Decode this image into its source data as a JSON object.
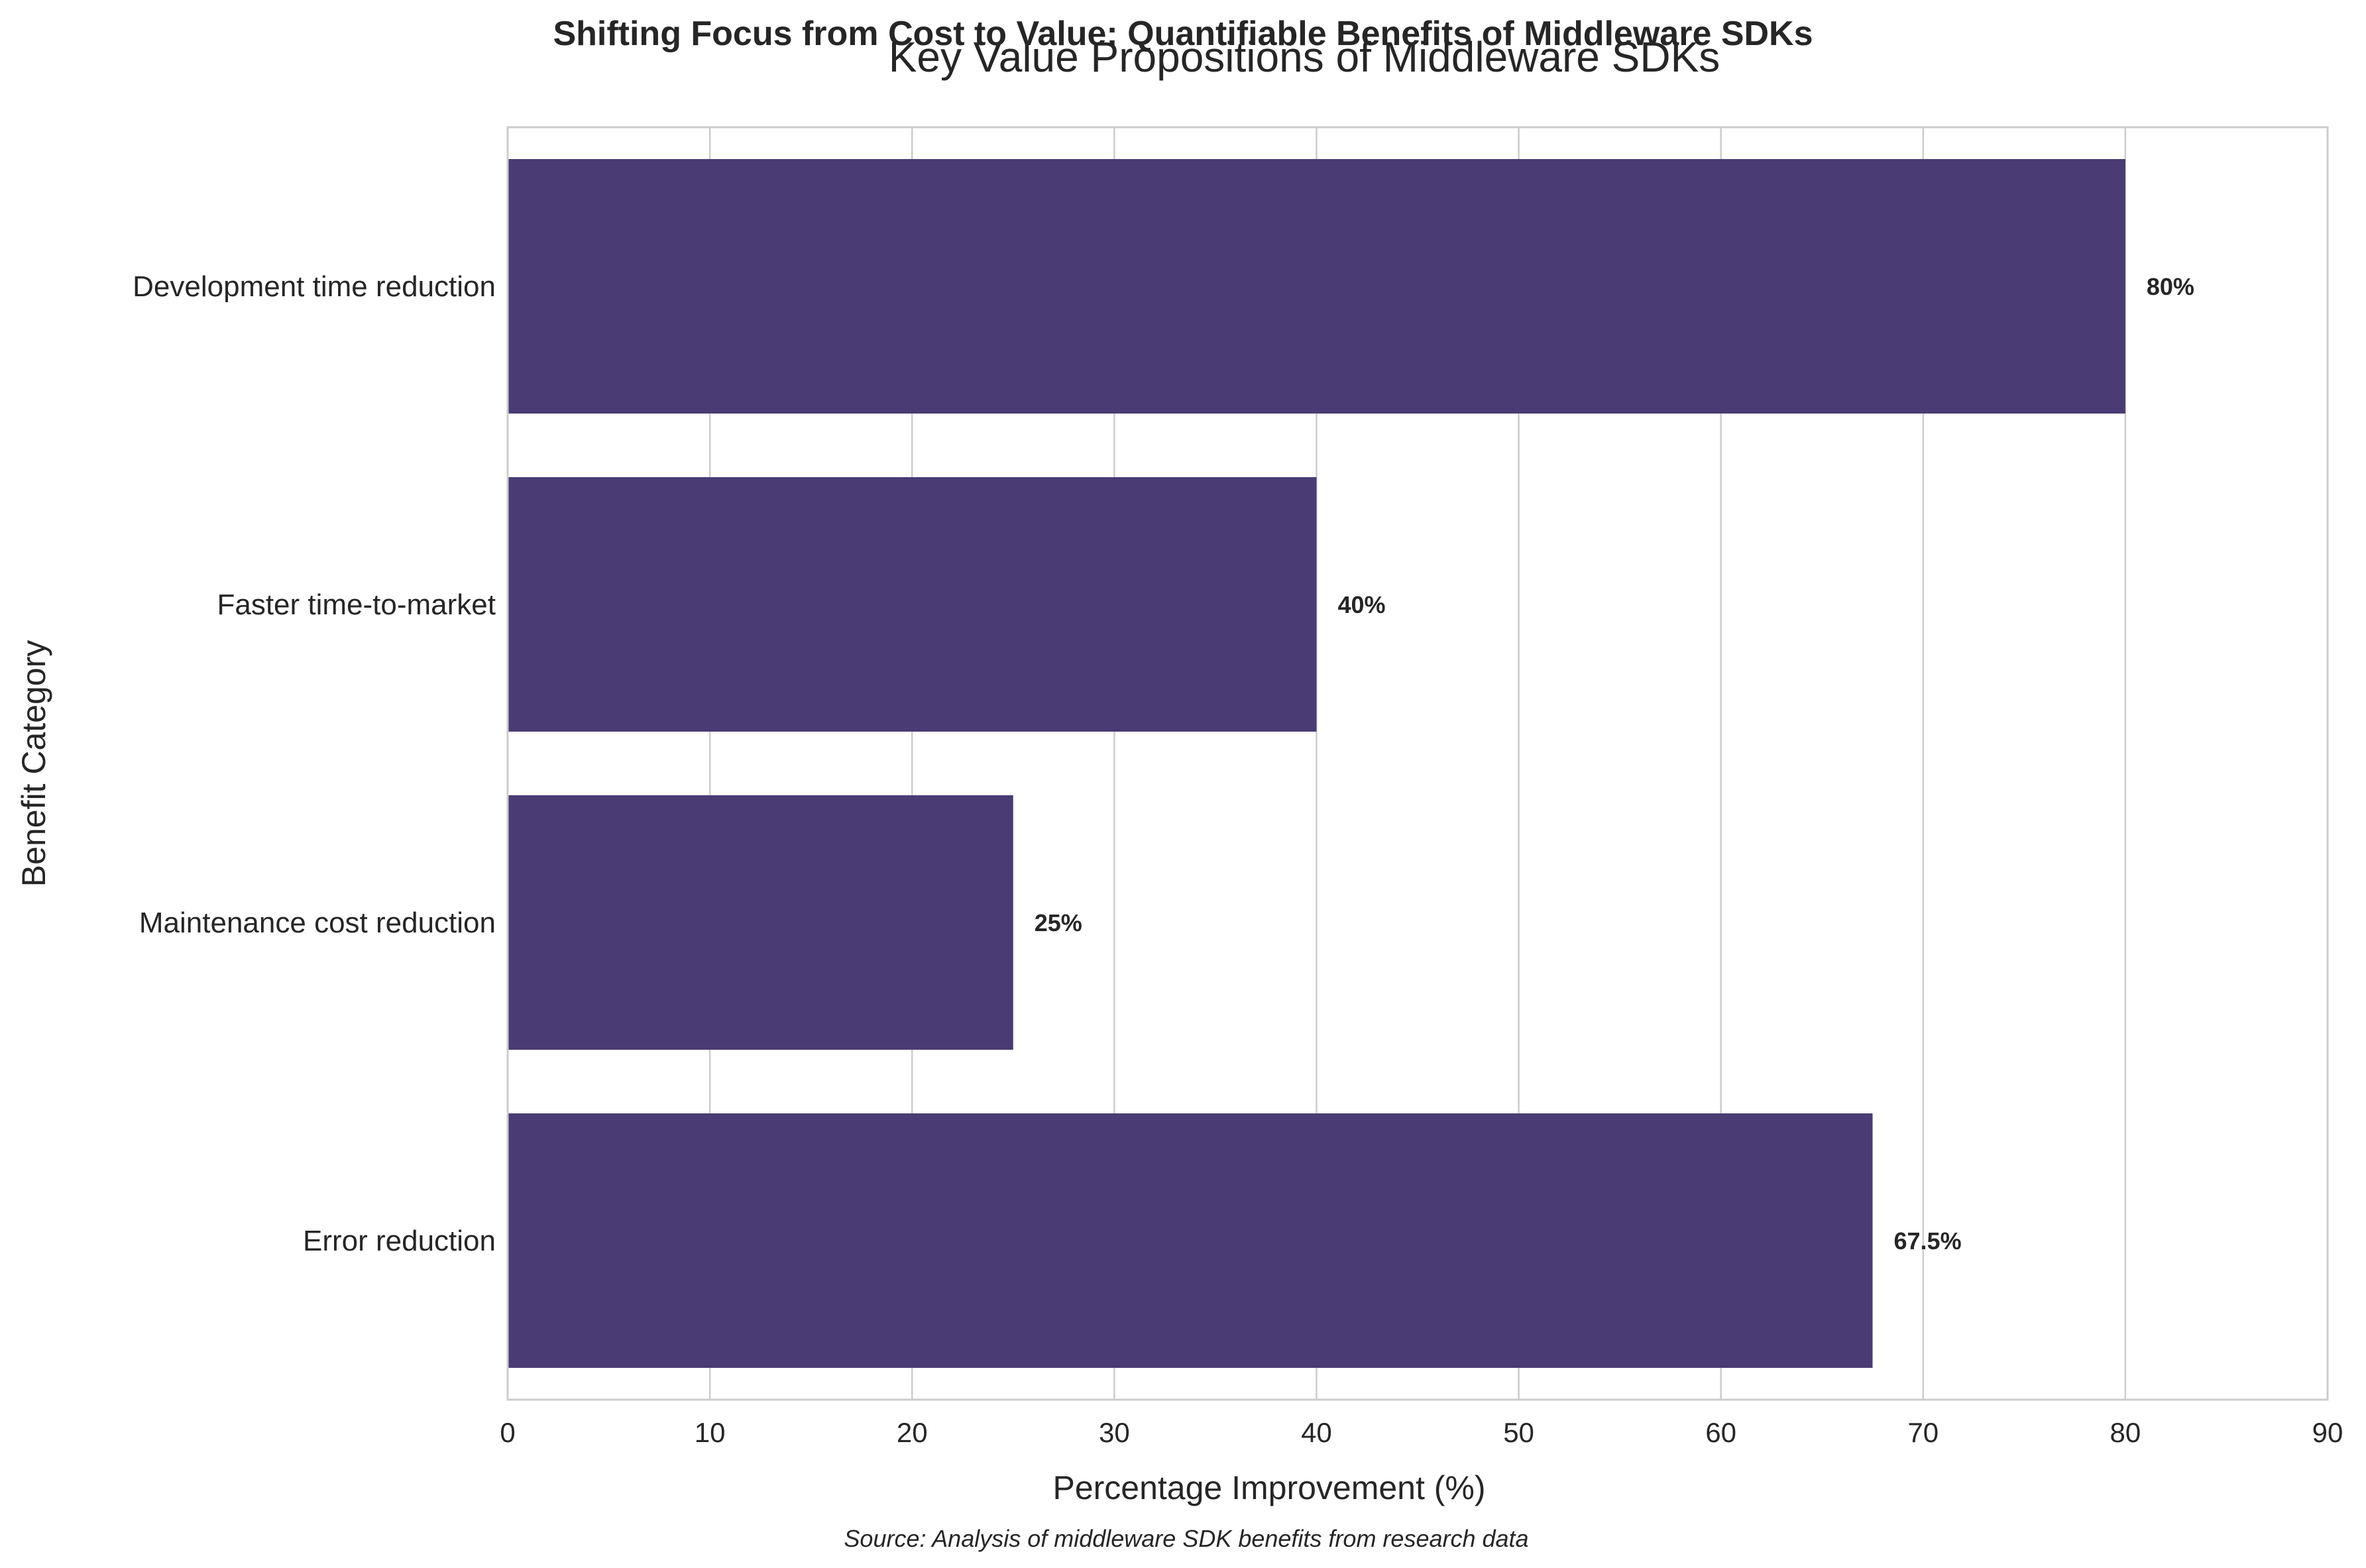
{
  "chart_data": {
    "type": "bar",
    "orientation": "horizontal",
    "suptitle": "Shifting Focus from Cost to Value: Quantifiable Benefits of Middleware SDKs",
    "title": "Key Value Propositions of Middleware SDKs",
    "xlabel": "Percentage Improvement (%)",
    "ylabel": "Benefit Category",
    "source": "Source: Analysis of middleware SDK benefits from research data",
    "categories": [
      "Development time reduction",
      "Faster time-to-market",
      "Maintenance cost reduction",
      "Error reduction"
    ],
    "values": [
      80,
      40,
      25,
      67.5
    ],
    "value_labels": [
      "80%",
      "40%",
      "25%",
      "67.5%"
    ],
    "xlim": [
      0,
      90
    ],
    "xticks": [
      0,
      10,
      20,
      30,
      40,
      50,
      60,
      70,
      80,
      90
    ],
    "grid": "vertical",
    "legend": "none",
    "bar_color": "#4a3b74",
    "grid_color": "#cccccc",
    "frame_color": "#cccccc"
  }
}
